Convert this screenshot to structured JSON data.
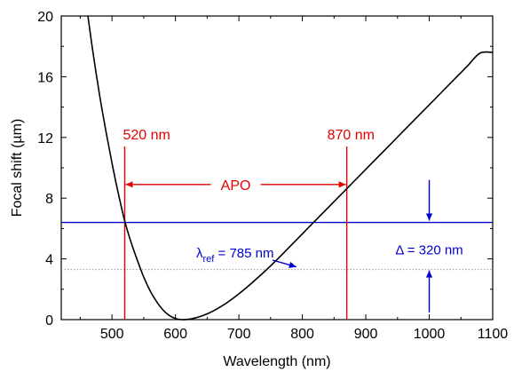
{
  "chart_data": {
    "type": "line",
    "xlabel": "Wavelength (nm)",
    "ylabel": "Focal shift (µm)",
    "xlim": [
      420,
      1100
    ],
    "ylim": [
      0,
      20
    ],
    "xticks": [
      500,
      600,
      700,
      800,
      900,
      1000,
      1100
    ],
    "yticks": [
      0,
      4,
      8,
      12,
      16,
      20
    ],
    "grid": false,
    "series": [
      {
        "type": "curve",
        "color": "#000000",
        "x": [
          462,
          470,
          480,
          490,
          500,
          510,
          520,
          530,
          540,
          550,
          560,
          570,
          580,
          590,
          600,
          610,
          620,
          630,
          640,
          650,
          660,
          670,
          680,
          690,
          700,
          720,
          740,
          760,
          780,
          800,
          820,
          840,
          860,
          870,
          880,
          900,
          920,
          940,
          960,
          980,
          1000,
          1020,
          1040,
          1060,
          1080,
          1100
        ],
        "y": [
          20.0,
          17.6,
          14.9,
          12.5,
          10.3,
          8.3,
          6.5,
          5.1,
          3.9,
          2.8,
          1.9,
          1.2,
          0.65,
          0.28,
          0.07,
          0.0,
          0.02,
          0.1,
          0.22,
          0.38,
          0.58,
          0.82,
          1.08,
          1.38,
          1.7,
          2.4,
          3.15,
          3.95,
          4.8,
          5.65,
          6.5,
          7.35,
          8.2,
          8.62,
          9.05,
          9.9,
          10.75,
          11.6,
          12.45,
          13.3,
          14.15,
          15.0,
          15.85,
          16.7,
          17.55,
          17.6
        ]
      }
    ],
    "annotations": {
      "apo": {
        "label": "APO",
        "color": "#e60000",
        "x_start": 520,
        "x_end": 870,
        "y": 8.9,
        "line_y_top": 11.4,
        "start_label": "520 nm",
        "end_label": "870 nm"
      },
      "delta": {
        "label": "Δ = 320 nm",
        "color": "#0000cc",
        "y": 6.4,
        "x_arrow": 1000,
        "arrow_top_from": 9.2,
        "arrow_bottom_from": 3.4
      },
      "lambda_ref": {
        "symbol": "λ",
        "subscript": "ref",
        "text": " = 785 nm",
        "color": "#0000cc",
        "x": 785,
        "y": 3.3,
        "ref_line_color": "#999999"
      }
    }
  }
}
